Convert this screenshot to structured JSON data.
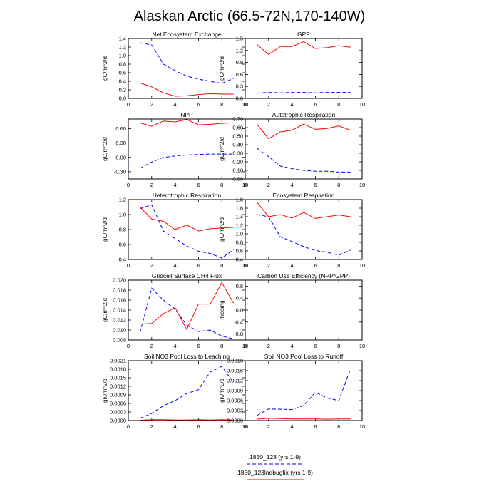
{
  "title": "Alaskan Arctic (66.5-72N,170-140W)",
  "series_styles": [
    {
      "color": "#0000ff",
      "dash": "dashed"
    },
    {
      "color": "#ff0000",
      "dash": "solid"
    }
  ],
  "legend": [
    {
      "label": "1850_123 (yrs 1-9)"
    },
    {
      "label": "1850_123lndbugfix (yrs 1-9)"
    }
  ],
  "chart_data": [
    {
      "type": "line",
      "title": "Net Ecosystem Exchange",
      "ylabel": "gC/m^2/d",
      "xlim": [
        0,
        10
      ],
      "ylim": [
        0,
        1.4
      ],
      "xticks": [
        0,
        2,
        4,
        6,
        8,
        10
      ],
      "xtick_labels": [
        "0",
        "2",
        "4",
        "6",
        "8",
        "10"
      ],
      "yticks": [
        0,
        0.2,
        0.4,
        0.6,
        0.8,
        1.0,
        1.2,
        1.4
      ],
      "ytick_labels": [
        "0.0",
        "0.2",
        "0.4",
        "0.6",
        "0.8",
        "1.0",
        "1.2",
        "1.4"
      ],
      "x": [
        1,
        2,
        3,
        4,
        5,
        6,
        7,
        8,
        9
      ],
      "series": [
        {
          "values": [
            1.3,
            1.25,
            0.8,
            0.65,
            0.52,
            0.45,
            0.4,
            0.35,
            0.47
          ]
        },
        {
          "values": [
            0.36,
            0.27,
            0.13,
            0.05,
            0.06,
            0.09,
            0.11,
            0.1,
            0.1
          ]
        }
      ]
    },
    {
      "type": "line",
      "title": "GPP",
      "ylabel": "gC/m^2/d",
      "xlim": [
        0,
        10
      ],
      "ylim": [
        0,
        1.5
      ],
      "xticks": [
        0,
        2,
        4,
        6,
        8,
        10
      ],
      "xtick_labels": [
        "0",
        "2",
        "4",
        "6",
        "8",
        "10"
      ],
      "yticks": [
        0,
        0.3,
        0.6,
        0.9,
        1.2,
        1.5
      ],
      "ytick_labels": [
        "0.0",
        "0.3",
        "0.6",
        "0.9",
        "1.2",
        "1.5"
      ],
      "x": [
        1,
        2,
        3,
        4,
        5,
        6,
        7,
        8,
        9
      ],
      "series": [
        {
          "values": [
            0.13,
            0.15,
            0.14,
            0.15,
            0.15,
            0.14,
            0.15,
            0.15,
            0.15
          ]
        },
        {
          "values": [
            1.35,
            1.1,
            1.3,
            1.3,
            1.42,
            1.25,
            1.27,
            1.32,
            1.28
          ]
        }
      ]
    },
    {
      "type": "line",
      "title": "NPP",
      "ylabel": "gC/m^2/d",
      "xlim": [
        0,
        10
      ],
      "ylim": [
        -0.45,
        0.8
      ],
      "xticks": [
        0,
        2,
        4,
        6,
        8,
        10
      ],
      "xtick_labels": [
        "0",
        "2",
        "4",
        "6",
        "8",
        "10"
      ],
      "yticks": [
        -0.3,
        0,
        0.3,
        0.6
      ],
      "ytick_labels": [
        "-0.30",
        "0.00",
        "0.30",
        "0.60"
      ],
      "x": [
        1,
        2,
        3,
        4,
        5,
        6,
        7,
        8,
        9
      ],
      "series": [
        {
          "values": [
            -0.23,
            -0.1,
            0.0,
            0.03,
            0.05,
            0.06,
            0.07,
            0.07,
            0.07
          ]
        },
        {
          "values": [
            0.72,
            0.65,
            0.76,
            0.74,
            0.79,
            0.68,
            0.69,
            0.71,
            0.72
          ]
        }
      ]
    },
    {
      "type": "line",
      "title": "Autotrophic Respiration",
      "ylabel": "gC/m^2/d",
      "xlim": [
        0,
        10
      ],
      "ylim": [
        0,
        0.7
      ],
      "xticks": [
        0,
        2,
        4,
        6,
        8,
        10
      ],
      "xtick_labels": [
        "0",
        "2",
        "4",
        "6",
        "8",
        "10"
      ],
      "yticks": [
        0,
        0.1,
        0.2,
        0.3,
        0.4,
        0.5,
        0.6,
        0.7
      ],
      "ytick_labels": [
        "0.00",
        "0.10",
        "0.20",
        "0.30",
        "0.40",
        "0.50",
        "0.60",
        "0.70"
      ],
      "x": [
        1,
        2,
        3,
        4,
        5,
        6,
        7,
        8,
        9
      ],
      "series": [
        {
          "values": [
            0.36,
            0.26,
            0.15,
            0.12,
            0.1,
            0.09,
            0.09,
            0.08,
            0.08
          ]
        },
        {
          "values": [
            0.64,
            0.47,
            0.55,
            0.57,
            0.64,
            0.58,
            0.59,
            0.62,
            0.57
          ]
        }
      ]
    },
    {
      "type": "line",
      "title": "Heterotrophic Respiration",
      "ylabel": "gC/m^2/d",
      "xlim": [
        0,
        10
      ],
      "ylim": [
        0.4,
        1.2
      ],
      "xticks": [
        0,
        2,
        4,
        6,
        8,
        10
      ],
      "xtick_labels": [
        "0",
        "2",
        "4",
        "6",
        "8",
        "10"
      ],
      "yticks": [
        0.4,
        0.6,
        0.8,
        1.0,
        1.2
      ],
      "ytick_labels": [
        "0.4",
        "0.6",
        "0.8",
        "1.0",
        "1.2"
      ],
      "x": [
        1,
        2,
        3,
        4,
        5,
        6,
        7,
        8,
        9
      ],
      "series": [
        {
          "values": [
            1.08,
            1.13,
            0.78,
            0.68,
            0.58,
            0.51,
            0.48,
            0.42,
            0.53
          ]
        },
        {
          "values": [
            1.1,
            0.94,
            0.91,
            0.8,
            0.86,
            0.78,
            0.81,
            0.82,
            0.83
          ]
        }
      ]
    },
    {
      "type": "line",
      "title": "Ecosystem Respiration",
      "ylabel": "gC/m^2/d",
      "xlim": [
        0,
        10
      ],
      "ylim": [
        0.4,
        1.8
      ],
      "xticks": [
        0,
        2,
        4,
        6,
        8,
        10
      ],
      "xtick_labels": [
        "0",
        "2",
        "4",
        "6",
        "8",
        "10"
      ],
      "yticks": [
        0.4,
        0.6,
        0.8,
        1.0,
        1.2,
        1.4,
        1.6,
        1.8
      ],
      "ytick_labels": [
        "0.4",
        "0.6",
        "0.8",
        "1.0",
        "1.2",
        "1.4",
        "1.6",
        "1.8"
      ],
      "x": [
        1,
        2,
        3,
        4,
        5,
        6,
        7,
        8,
        9
      ],
      "series": [
        {
          "values": [
            1.45,
            1.4,
            0.93,
            0.82,
            0.7,
            0.61,
            0.57,
            0.5,
            0.62
          ]
        },
        {
          "values": [
            1.74,
            1.4,
            1.45,
            1.37,
            1.5,
            1.36,
            1.4,
            1.44,
            1.4
          ]
        }
      ]
    },
    {
      "type": "line",
      "title": "Gridcell Surface CH4 Flux",
      "ylabel": "gC/m^2/d",
      "xlim": [
        0,
        10
      ],
      "ylim": [
        0.008,
        0.02
      ],
      "xticks": [
        0,
        2,
        4,
        6,
        8,
        10
      ],
      "xtick_labels": [
        "0",
        "2",
        "4",
        "6",
        "8",
        "10"
      ],
      "yticks": [
        0.008,
        0.01,
        0.012,
        0.014,
        0.016,
        0.018,
        0.02
      ],
      "ytick_labels": [
        "0.008",
        "0.010",
        "0.012",
        "0.014",
        "0.016",
        "0.018",
        "0.020"
      ],
      "x": [
        1,
        2,
        3,
        4,
        5,
        6,
        7,
        8,
        9
      ],
      "series": [
        {
          "values": [
            0.0095,
            0.0184,
            0.016,
            0.0142,
            0.011,
            0.0097,
            0.01,
            0.0088,
            0.0082
          ]
        },
        {
          "values": [
            0.0112,
            0.0113,
            0.0133,
            0.0145,
            0.0101,
            0.0152,
            0.0152,
            0.0195,
            0.0154
          ]
        }
      ]
    },
    {
      "type": "line",
      "title": "Carbon Use Efficiency (NPP/GPP)",
      "ylabel": "missing",
      "xlim": [
        0,
        10
      ],
      "ylim": [
        -1.0,
        1.0
      ],
      "xticks": [
        0,
        2,
        4,
        6,
        8,
        10
      ],
      "xtick_labels": [
        "0",
        "2",
        "4",
        "6",
        "8",
        "10"
      ],
      "yticks": [
        -0.8,
        -0.4,
        0,
        0.4,
        0.8
      ],
      "ytick_labels": [
        "-0.8",
        "-0.4",
        "0.0",
        "0.4",
        "0.8"
      ],
      "x": [],
      "series": []
    },
    {
      "type": "line",
      "title": "Soil NO3 Pool Loss to Leaching",
      "ylabel": "gN/m^2/d",
      "xlim": [
        0,
        10
      ],
      "ylim": [
        0,
        0.0021
      ],
      "xticks": [
        0,
        2,
        4,
        6,
        8,
        10
      ],
      "xtick_labels": [
        "0",
        "2",
        "4",
        "6",
        "8",
        "10"
      ],
      "yticks": [
        0,
        0.0003,
        0.0006,
        0.0009,
        0.0012,
        0.0015,
        0.0018,
        0.0021
      ],
      "ytick_labels": [
        "0.0000",
        "0.0003",
        "0.0006",
        "0.0009",
        "0.0012",
        "0.0015",
        "0.0018",
        "0.0021"
      ],
      "x": [
        1,
        2,
        3,
        4,
        5,
        6,
        7,
        8,
        9
      ],
      "series": [
        {
          "values": [
            8e-05,
            0.00025,
            0.00052,
            0.0007,
            0.00095,
            0.00108,
            0.0017,
            0.0019,
            0.00133
          ]
        },
        {
          "values": [
            1e-05,
            3e-05,
            3e-05,
            2e-05,
            2e-05,
            3e-05,
            2e-05,
            3e-05,
            2e-05
          ]
        }
      ]
    },
    {
      "type": "line",
      "title": "Soil NO3 Pool Loss to Runoff",
      "ylabel": "gN/m^2/d",
      "xlim": [
        0,
        10
      ],
      "ylim": [
        0,
        0.0018
      ],
      "xticks": [
        0,
        2,
        4,
        6,
        8,
        10
      ],
      "xtick_labels": [
        "0",
        "2",
        "4",
        "6",
        "8",
        "10"
      ],
      "yticks": [
        0,
        0.0003,
        0.0006,
        0.0009,
        0.0012,
        0.0015,
        0.0018
      ],
      "ytick_labels": [
        "0.0000",
        "0.0003",
        "0.0006",
        "0.0009",
        "0.0012",
        "0.0015",
        "0.0018"
      ],
      "x": [
        1,
        2,
        3,
        4,
        5,
        6,
        7,
        8,
        9
      ],
      "series": [
        {
          "values": [
            0.00015,
            0.00035,
            0.00034,
            0.00033,
            0.00045,
            0.00085,
            0.00068,
            0.0006,
            0.00155
          ]
        },
        {
          "values": [
            4e-05,
            7e-05,
            6e-05,
            5e-05,
            5e-05,
            5e-05,
            4e-05,
            5e-05,
            5e-05
          ]
        }
      ]
    }
  ]
}
